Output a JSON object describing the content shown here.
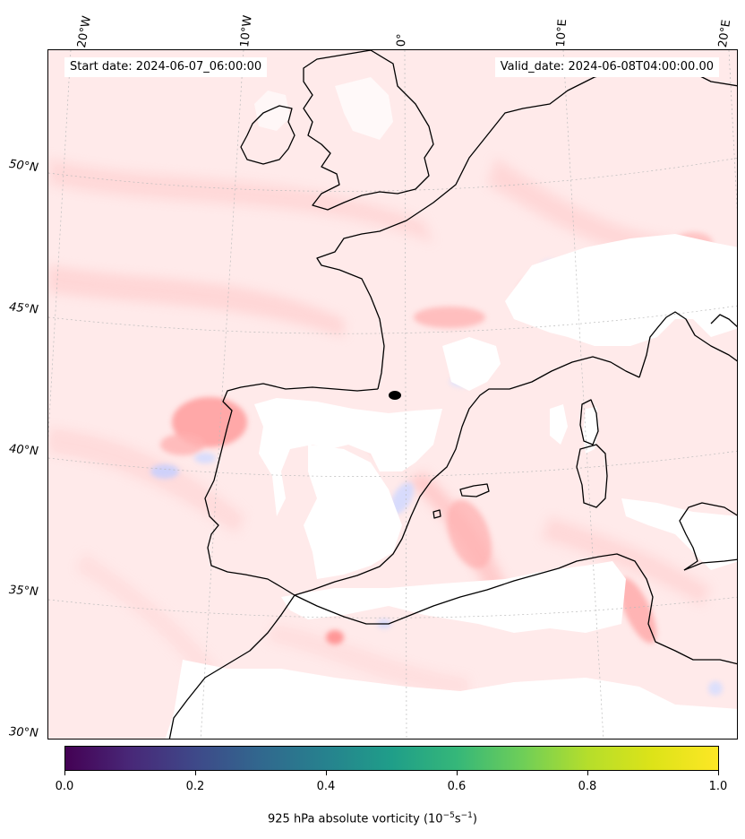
{
  "map": {
    "start_label": "Start date: 2024-06-07_06:00:00",
    "valid_label": "Valid_date: 2024-06-08T04:00:00.00",
    "lon_labels": [
      "20°W",
      "10°W",
      "0°",
      "10°E",
      "20°E"
    ],
    "lat_labels": [
      "50°N",
      "45°N",
      "40°N",
      "35°N",
      "30°N"
    ],
    "colorbar": {
      "ticks": [
        "0.0",
        "0.2",
        "0.4",
        "0.6",
        "0.8",
        "1.0"
      ],
      "title_prefix": "925 hPa absolute vorticity (10",
      "title_exp1": "−5",
      "title_mid": "s",
      "title_exp2": "−1",
      "title_suffix": ")",
      "colormap": "viridis"
    },
    "colors": {
      "positive": "#ff9a9a",
      "negative": "#c9d3ff",
      "coastline": "#000000"
    }
  }
}
